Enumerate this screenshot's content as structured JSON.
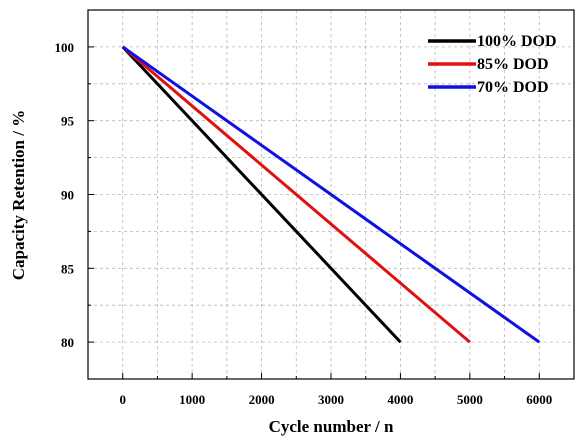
{
  "chart_data": {
    "type": "line",
    "xlabel": "Cycle number / n",
    "ylabel": "Capacity Retention / %",
    "xlim": [
      -500,
      6500
    ],
    "ylim": [
      77.5,
      102.5
    ],
    "xticks": [
      0,
      1000,
      2000,
      3000,
      4000,
      5000,
      6000
    ],
    "yticks": [
      80,
      85,
      90,
      95,
      100
    ],
    "grid": true,
    "legend_position": "top-right",
    "series": [
      {
        "name": "100% DOD",
        "color": "#000000",
        "x": [
          0,
          4000
        ],
        "y": [
          100,
          80
        ]
      },
      {
        "name": "85% DOD",
        "color": "#e01010",
        "x": [
          0,
          5000
        ],
        "y": [
          100,
          80
        ]
      },
      {
        "name": "70% DOD",
        "color": "#1010e0",
        "x": [
          0,
          6000
        ],
        "y": [
          100,
          80
        ]
      }
    ]
  }
}
